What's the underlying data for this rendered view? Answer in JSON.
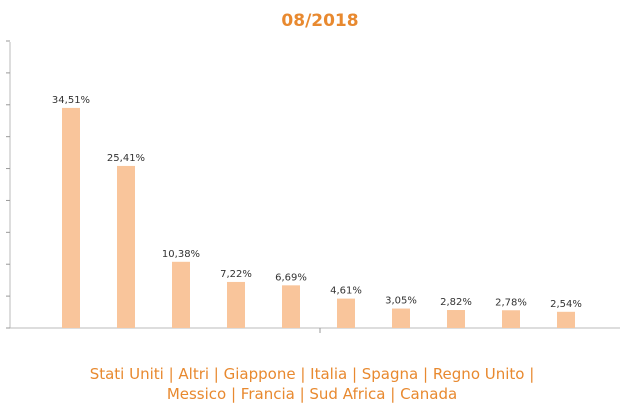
{
  "chart_data": {
    "type": "bar",
    "title": "08/2018",
    "values": [
      34.51,
      25.41,
      10.38,
      7.22,
      6.69,
      4.61,
      3.05,
      2.82,
      2.78,
      2.54
    ],
    "value_labels": [
      "34,51%",
      "25,41%",
      "10,38%",
      "7,22%",
      "6,69%",
      "4,61%",
      "3,05%",
      "2,82%",
      "2,78%",
      "2,54%"
    ],
    "color": "#f9c59b",
    "ylim": [
      0,
      45
    ],
    "yticks": [
      0,
      5,
      10,
      15,
      20,
      25,
      30,
      35,
      40,
      45
    ],
    "caption": "Stati Uniti | Altri | Giappone | Italia | Spagna | Regno Unito | Messico | Francia | Sud Africa | Canada"
  }
}
